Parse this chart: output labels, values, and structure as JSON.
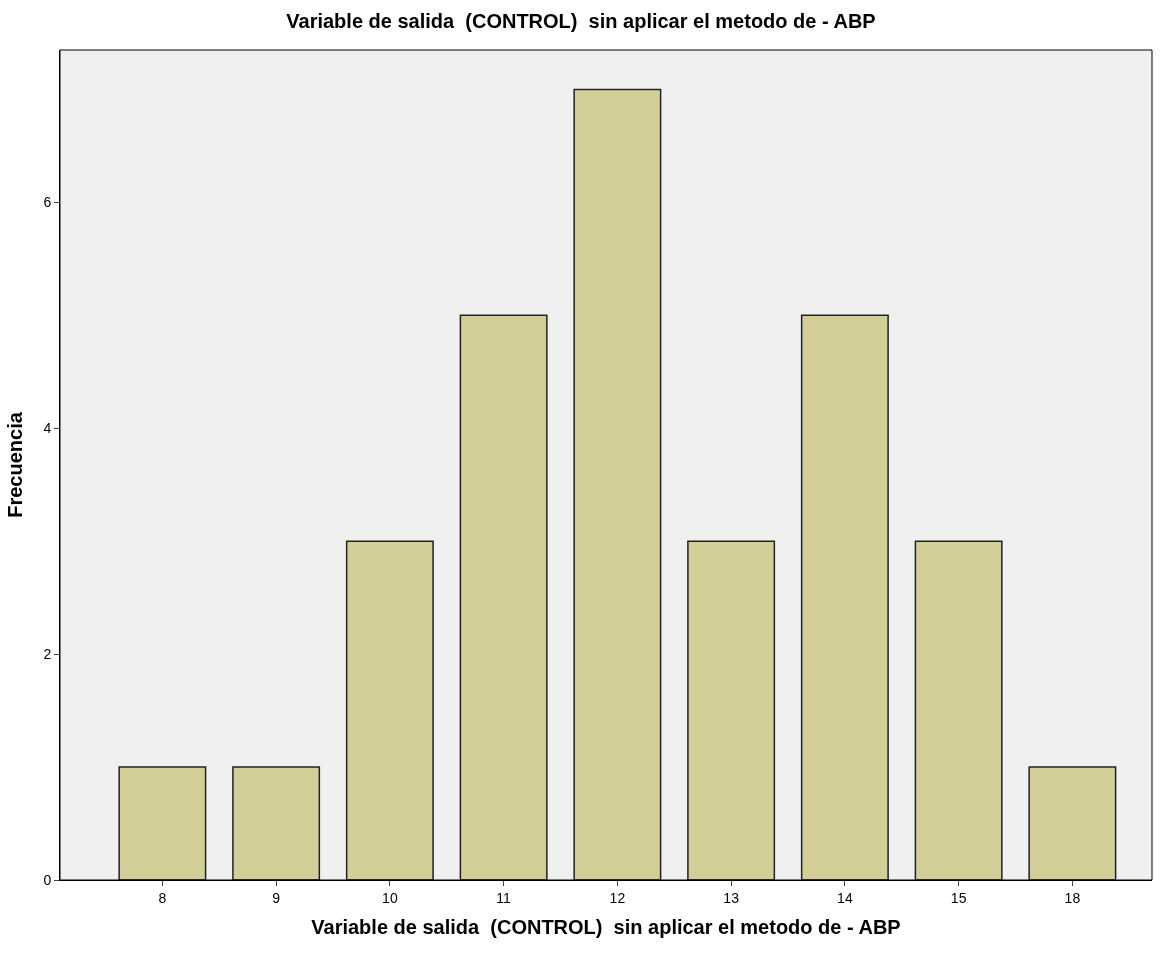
{
  "chart_data": {
    "type": "bar",
    "title": "Variable de salida  (CONTROL)  sin aplicar el metodo de - ABP",
    "xlabel": "Variable de salida  (CONTROL)  sin aplicar el metodo de - ABP",
    "ylabel": "Frecuencia",
    "categories": [
      "8",
      "9",
      "10",
      "11",
      "12",
      "13",
      "14",
      "15",
      "18"
    ],
    "values": [
      1,
      1,
      3,
      5,
      7,
      3,
      5,
      3,
      1
    ],
    "color": "#d3ce98",
    "ylim": [
      0,
      7.35
    ],
    "yticks": [
      0,
      2,
      4,
      6
    ],
    "grid": false
  }
}
